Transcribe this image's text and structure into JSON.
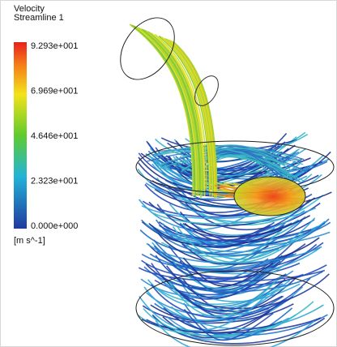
{
  "legend": {
    "title": "Velocity",
    "subtitle": "Streamline 1",
    "ticks": [
      "9.293e+001",
      "6.969e+001",
      "4.646e+001",
      "2.323e+001",
      "0.000e+000"
    ],
    "unit": "[m s^-1]"
  }
}
